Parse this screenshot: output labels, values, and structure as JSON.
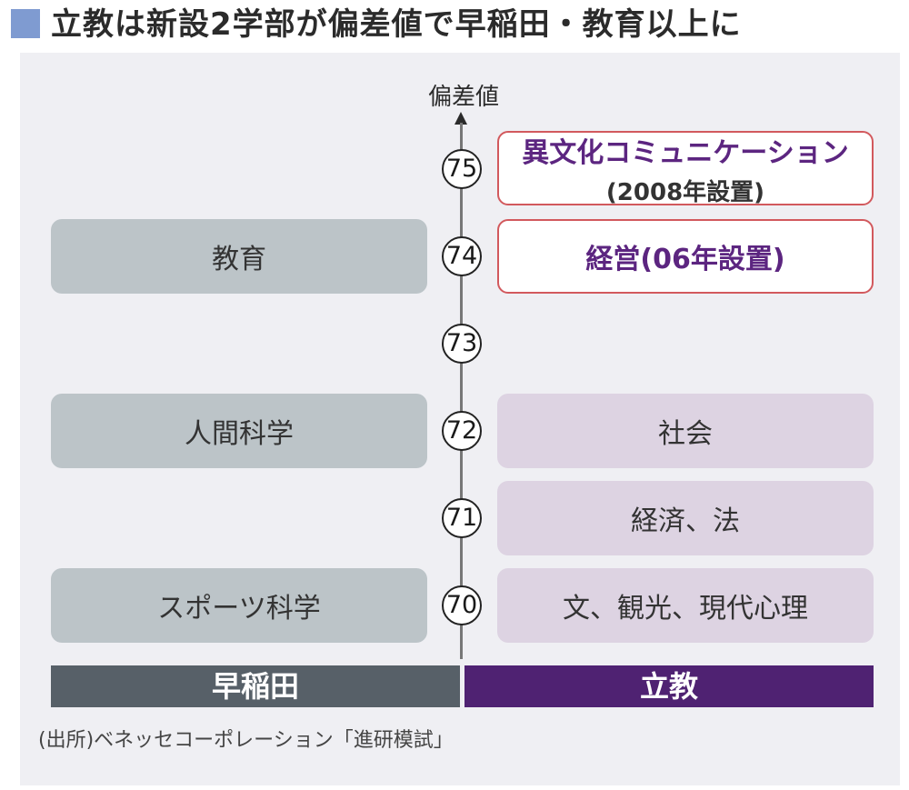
{
  "title": "立教は新設2学部が偏差値で早稲田・教育以上に",
  "axis": {
    "label": "偏差値",
    "ticks": [
      "75",
      "74",
      "73",
      "72",
      "71",
      "70"
    ]
  },
  "waseda": {
    "label": "早稲田",
    "faculties": [
      {
        "name": "教育",
        "score": 74
      },
      {
        "name": "人間科学",
        "score": 72
      },
      {
        "name": "スポーツ科学",
        "score": 70
      }
    ]
  },
  "rikkyo": {
    "label": "立教",
    "new_faculties": [
      {
        "name": "異文化コミュニケーション",
        "note": "(2008年設置)",
        "score": 75
      },
      {
        "name": "経営(06年設置)",
        "score": 74
      }
    ],
    "faculties": [
      {
        "name": "社会",
        "score": 72
      },
      {
        "name": "経済、法",
        "score": 71
      },
      {
        "name": "文、観光、現代心理",
        "score": 70
      }
    ]
  },
  "source": "(出所)ベネッセコーポレーション「進研模試」",
  "colors": {
    "waseda_box": "#bcc4c8",
    "rikkyo_box": "#ddd3e2",
    "new_border": "#d2595d",
    "waseda_footer": "#576068",
    "rikkyo_footer": "#4f2272",
    "title_square": "#7f9bd1"
  }
}
